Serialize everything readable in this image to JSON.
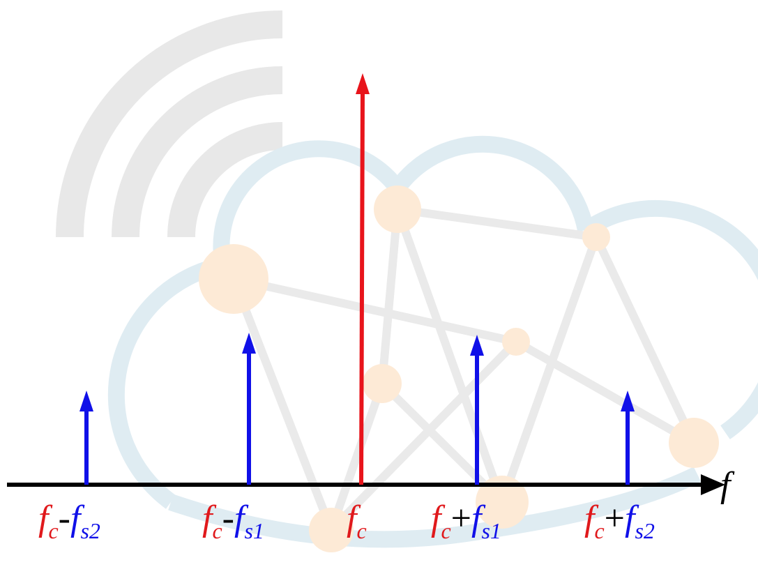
{
  "axis_label": "f",
  "labels": [
    {
      "carrier": "f",
      "carrier_sub": "c",
      "operator": "-",
      "sideband": "f",
      "sideband_sub": "s2"
    },
    {
      "carrier": "f",
      "carrier_sub": "c",
      "operator": "-",
      "sideband": "f",
      "sideband_sub": "s1"
    },
    {
      "carrier": "f",
      "carrier_sub": "c"
    },
    {
      "carrier": "f",
      "carrier_sub": "c",
      "operator": "+",
      "sideband": "f",
      "sideband_sub": "s1"
    },
    {
      "carrier": "f",
      "carrier_sub": "c",
      "operator": "+",
      "sideband": "f",
      "sideband_sub": "s2"
    }
  ]
}
